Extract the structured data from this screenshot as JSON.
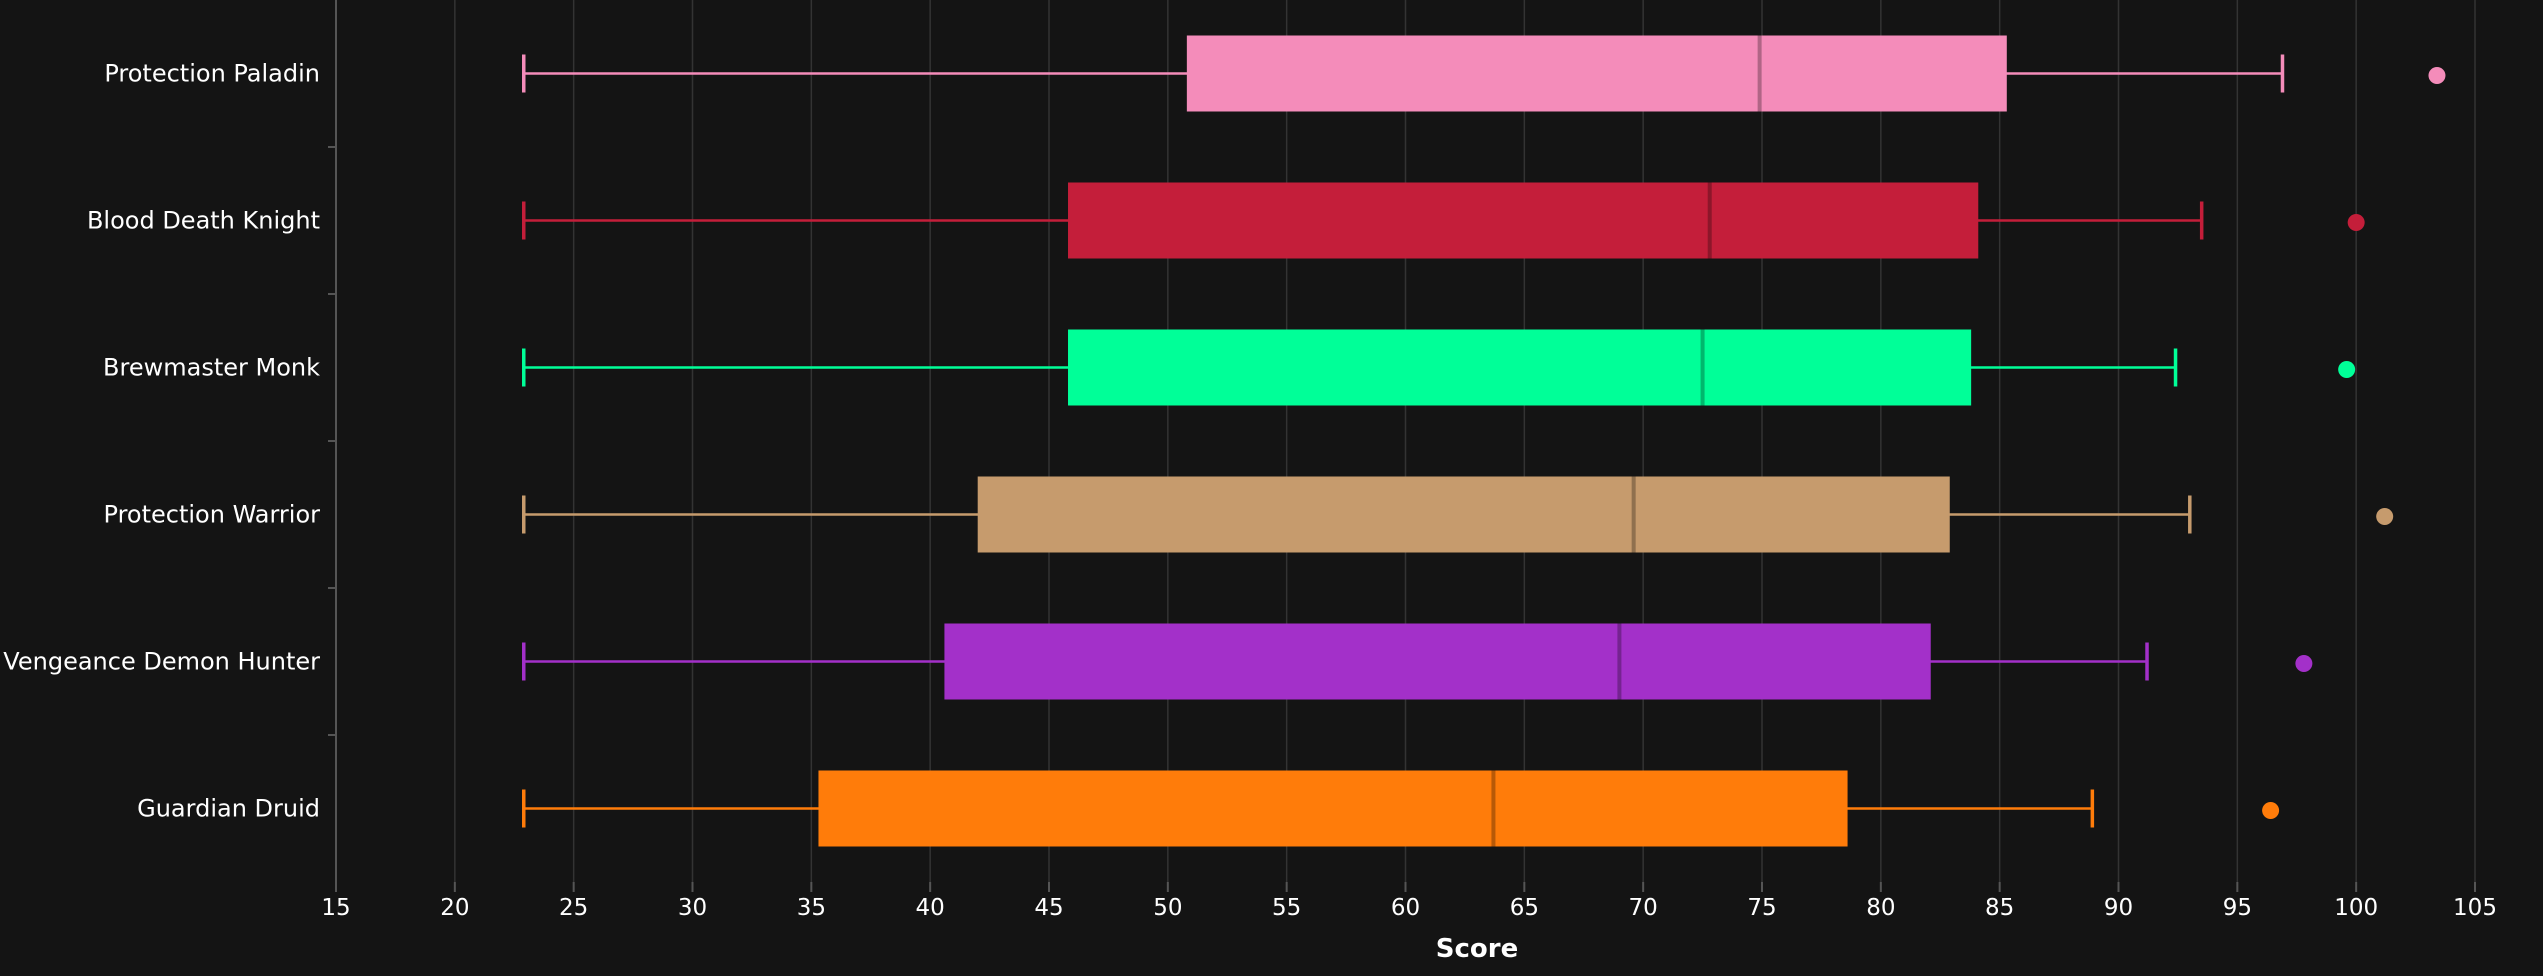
{
  "chart_data": {
    "type": "boxplot",
    "orientation": "horizontal",
    "xlabel": "Score",
    "xlim": [
      15,
      105
    ],
    "x_ticks": [
      15,
      20,
      25,
      30,
      35,
      40,
      45,
      50,
      55,
      60,
      65,
      70,
      75,
      80,
      85,
      90,
      95,
      100,
      105
    ],
    "grid": "vertical",
    "series": [
      {
        "name": "Protection Paladin",
        "color": "#F48CBA",
        "min": 22.9,
        "q1": 50.8,
        "median": 74.9,
        "q3": 85.3,
        "max": 96.9,
        "outlier": 103.4
      },
      {
        "name": "Blood Death Knight",
        "color": "#C41E3A",
        "min": 22.9,
        "q1": 45.8,
        "median": 72.8,
        "q3": 84.1,
        "max": 93.5,
        "outlier": 100.0
      },
      {
        "name": "Brewmaster Monk",
        "color": "#00FF98",
        "min": 22.9,
        "q1": 45.8,
        "median": 72.5,
        "q3": 83.8,
        "max": 92.4,
        "outlier": 99.6
      },
      {
        "name": "Protection Warrior",
        "color": "#C69B6D",
        "min": 22.9,
        "q1": 42.0,
        "median": 69.6,
        "q3": 82.9,
        "max": 93.0,
        "outlier": 101.2
      },
      {
        "name": "Vengeance Demon Hunter",
        "color": "#A330C9",
        "min": 22.9,
        "q1": 40.6,
        "median": 69.0,
        "q3": 82.1,
        "max": 91.2,
        "outlier": 97.8
      },
      {
        "name": "Guardian Druid",
        "color": "#FF7C0A",
        "min": 22.9,
        "q1": 35.3,
        "median": 63.7,
        "q3": 78.6,
        "max": 88.9,
        "outlier": 96.4
      }
    ]
  }
}
